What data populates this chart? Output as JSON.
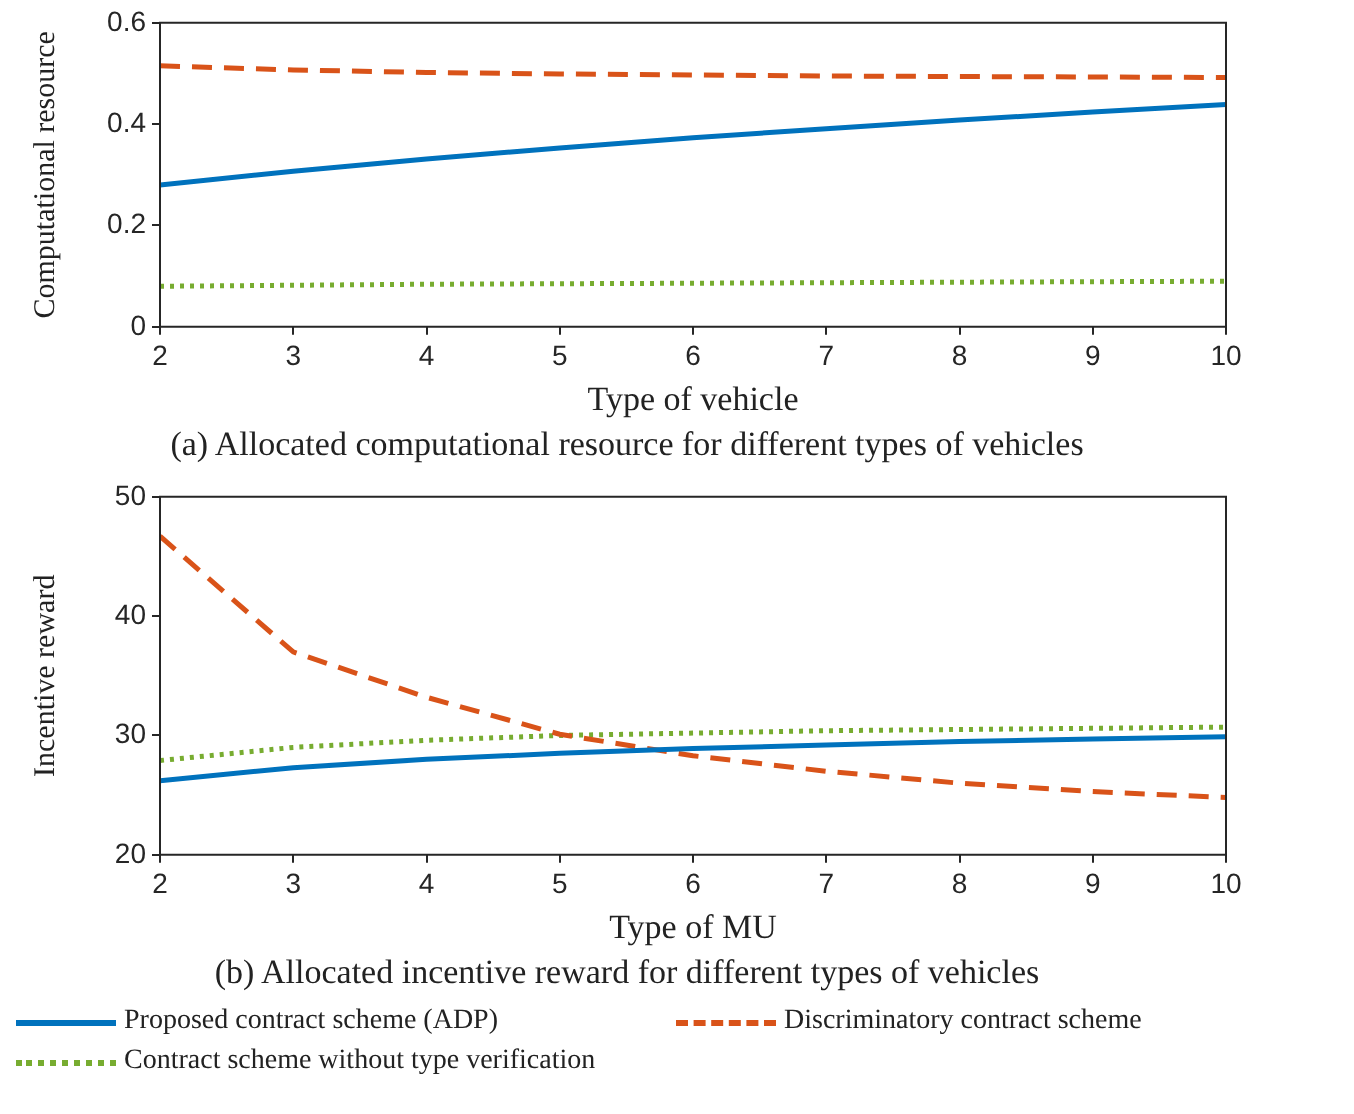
{
  "chart_data": [
    {
      "type": "line",
      "title": "(a) Allocated computational resource for different types of vehicles",
      "xlabel": "Type of vehicle",
      "ylabel": "Computational resource",
      "x": [
        2,
        3,
        4,
        5,
        6,
        7,
        8,
        9,
        10
      ],
      "xlim": [
        2,
        10
      ],
      "xticks": [
        2,
        3,
        4,
        5,
        6,
        7,
        8,
        9,
        10
      ],
      "ylim": [
        0,
        0.6
      ],
      "yticks": [
        0,
        0.2,
        0.4,
        0.6
      ],
      "grid": false,
      "legend": false,
      "marker": "none",
      "series": [
        {
          "color": "#0072bd",
          "line_style": "solid",
          "values": [
            0.28,
            0.307,
            0.331,
            0.353,
            0.373,
            0.391,
            0.408,
            0.424,
            0.439
          ]
        },
        {
          "color": "#d95319",
          "line_style": "dashed",
          "values": [
            0.515,
            0.507,
            0.502,
            0.499,
            0.497,
            0.495,
            0.494,
            0.493,
            0.492
          ]
        },
        {
          "color": "#77ac30",
          "line_style": "dotted",
          "values": [
            0.08,
            0.082,
            0.084,
            0.085,
            0.086,
            0.087,
            0.088,
            0.089,
            0.09
          ]
        }
      ]
    },
    {
      "type": "line",
      "title": "(b) Allocated incentive reward for different types of vehicles",
      "xlabel": "Type of MU",
      "ylabel": "Incentive reward",
      "x": [
        2,
        3,
        4,
        5,
        6,
        7,
        8,
        9,
        10
      ],
      "xlim": [
        2,
        10
      ],
      "xticks": [
        2,
        3,
        4,
        5,
        6,
        7,
        8,
        9,
        10
      ],
      "ylim": [
        20,
        50
      ],
      "yticks": [
        20,
        30,
        40,
        50
      ],
      "grid": false,
      "legend": "bottom",
      "marker": "none",
      "series": [
        {
          "name": "Proposed contract scheme (ADP)",
          "color": "#0072bd",
          "line_style": "solid",
          "values": [
            26.2,
            27.3,
            28.0,
            28.5,
            28.9,
            29.2,
            29.5,
            29.7,
            29.9
          ]
        },
        {
          "name": "Discriminatory contract scheme",
          "color": "#d95319",
          "line_style": "dashed",
          "values": [
            46.7,
            37.0,
            33.2,
            30.1,
            28.3,
            27.0,
            26.0,
            25.3,
            24.8
          ]
        },
        {
          "name": "Contract scheme without type verification",
          "color": "#77ac30",
          "line_style": "dotted",
          "values": [
            27.9,
            29.0,
            29.6,
            30.0,
            30.2,
            30.4,
            30.5,
            30.6,
            30.7
          ]
        }
      ]
    }
  ]
}
